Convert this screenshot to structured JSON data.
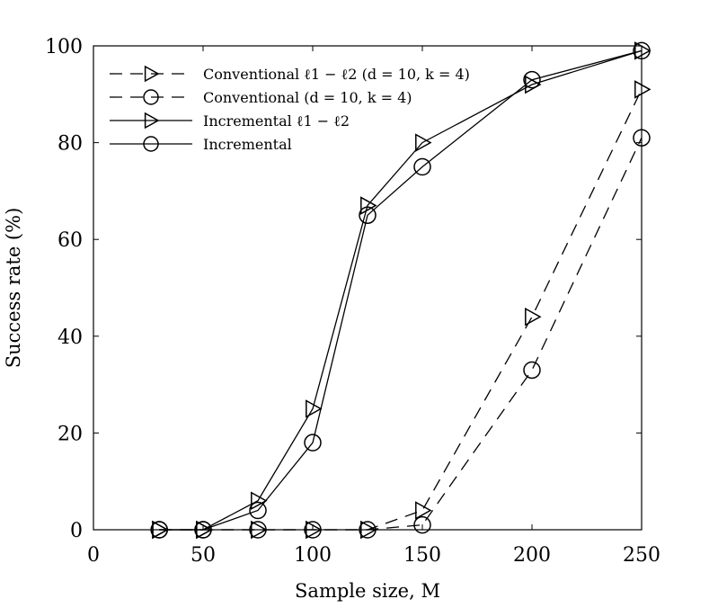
{
  "chart_data": {
    "type": "line",
    "xlabel": "Sample size, M",
    "ylabel": "Success rate (%)",
    "xlim": [
      0,
      250
    ],
    "ylim": [
      0,
      100
    ],
    "xticks": [
      0,
      50,
      100,
      150,
      200,
      250
    ],
    "yticks": [
      0,
      20,
      40,
      60,
      80,
      100
    ],
    "grid": false,
    "legend_position": "top-left",
    "series": [
      {
        "name": "Conventional ℓ1 − ℓ2 (d = 10, k = 4)",
        "style": "dashed",
        "marker": "triangle-right",
        "x": [
          30,
          50,
          75,
          100,
          125,
          150,
          200,
          250
        ],
        "y": [
          0,
          0,
          0,
          0,
          0,
          4,
          44,
          91
        ]
      },
      {
        "name": "Conventional (d = 10, k = 4)",
        "style": "dashed",
        "marker": "circle",
        "x": [
          30,
          50,
          75,
          100,
          125,
          150,
          200,
          250
        ],
        "y": [
          0,
          0,
          0,
          0,
          0,
          1,
          33,
          81
        ]
      },
      {
        "name": "Incremental ℓ1 − ℓ2",
        "style": "solid",
        "marker": "triangle-right",
        "x": [
          30,
          50,
          75,
          100,
          125,
          150,
          200,
          250
        ],
        "y": [
          0,
          0,
          6,
          25,
          67,
          80,
          92,
          99
        ]
      },
      {
        "name": "Incremental",
        "style": "solid",
        "marker": "circle",
        "x": [
          30,
          50,
          75,
          100,
          125,
          150,
          200,
          250
        ],
        "y": [
          0,
          0,
          4,
          18,
          65,
          75,
          93,
          99
        ]
      }
    ]
  }
}
